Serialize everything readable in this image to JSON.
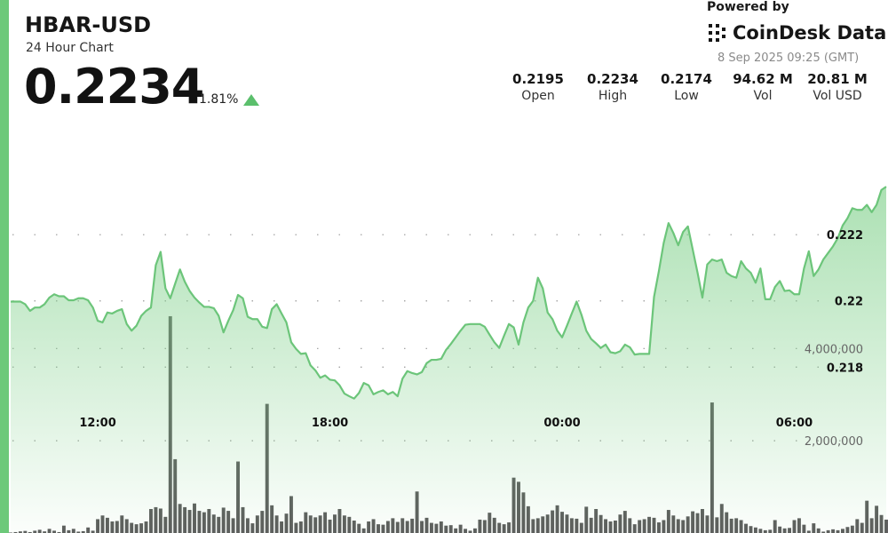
{
  "header": {
    "pair": "HBAR-USD",
    "subtitle": "24 Hour Chart",
    "price": "0.2234",
    "change": "1.81%",
    "direction_icon": "triangle-up-icon"
  },
  "branding": {
    "powered_by": "Powered by",
    "name": "CoinDesk Data",
    "icon": "coindesk-logo-icon",
    "timestamp": "8 Sep 2025 09:25 (GMT)"
  },
  "stats": [
    {
      "value": "0.2195",
      "label": "Open"
    },
    {
      "value": "0.2234",
      "label": "High"
    },
    {
      "value": "0.2174",
      "label": "Low"
    },
    {
      "value": "94.62 M",
      "label": "Vol"
    },
    {
      "value": "20.81 M",
      "label": "Vol USD"
    }
  ],
  "colors": {
    "accent": "#6dc97a",
    "line": "#6cc57a",
    "volume_bar": "#5c5c5c",
    "grid_dots": "#9a9a9a"
  },
  "chart_data": [
    {
      "type": "area",
      "title": "",
      "xlabel": "",
      "ylabel": "",
      "x_ticks": [
        "12:00",
        "18:00",
        "00:00",
        "06:00"
      ],
      "x_tick_index": [
        18,
        66,
        114,
        162
      ],
      "y_ticks": [
        "0.222",
        "0.22",
        "0.218"
      ],
      "y_tick_values": [
        0.222,
        0.22,
        0.218
      ],
      "ylim": [
        0.2168,
        0.2256
      ],
      "grid": "dotted horizontal",
      "series": [
        {
          "values": [
            0.21998,
            0.21998,
            0.21998,
            0.2199,
            0.2197,
            0.2198,
            0.2198,
            0.2199,
            0.2201,
            0.2202,
            0.22014,
            0.22014,
            0.22002,
            0.22002,
            0.22008,
            0.22008,
            0.22002,
            0.2198,
            0.2194,
            0.21935,
            0.21965,
            0.21962,
            0.2197,
            0.21975,
            0.2193,
            0.2191,
            0.21925,
            0.21955,
            0.2197,
            0.2198,
            0.22108,
            0.22148,
            0.22038,
            0.22008,
            0.22052,
            0.22095,
            0.22058,
            0.2203,
            0.2201,
            0.21995,
            0.21982,
            0.21982,
            0.21978,
            0.21955,
            0.21905,
            0.2194,
            0.21972,
            0.22018,
            0.22008,
            0.21952,
            0.21945,
            0.21945,
            0.21922,
            0.21918,
            0.21975,
            0.2199,
            0.21962,
            0.21935,
            0.21875,
            0.21855,
            0.2184,
            0.21842,
            0.21805,
            0.2179,
            0.21768,
            0.21775,
            0.21762,
            0.2176,
            0.21745,
            0.2172,
            0.21712,
            0.21705,
            0.21722,
            0.21752,
            0.21745,
            0.21718,
            0.21725,
            0.2173,
            0.21718,
            0.21725,
            0.21712,
            0.21765,
            0.21788,
            0.21782,
            0.21778,
            0.21785,
            0.21812,
            0.21822,
            0.21822,
            0.21825,
            0.21852,
            0.2187,
            0.2189,
            0.2191,
            0.21928,
            0.2193,
            0.2193,
            0.2193,
            0.21922,
            0.21898,
            0.21875,
            0.21858,
            0.21895,
            0.2193,
            0.2192,
            0.21868,
            0.21935,
            0.2198,
            0.22,
            0.2207,
            0.22038,
            0.21965,
            0.21945,
            0.2191,
            0.2189,
            0.21925,
            0.21962,
            0.21998,
            0.21958,
            0.2191,
            0.21885,
            0.21872,
            0.21858,
            0.21868,
            0.21845,
            0.21842,
            0.21848,
            0.21868,
            0.2186,
            0.21838,
            0.2184,
            0.2184,
            0.2184,
            0.22012,
            0.2209,
            0.22175,
            0.22235,
            0.22205,
            0.22168,
            0.22208,
            0.22225,
            0.22155,
            0.22085,
            0.2201,
            0.2211,
            0.22125,
            0.2212,
            0.22125,
            0.22085,
            0.22075,
            0.2207,
            0.2212,
            0.22098,
            0.22085,
            0.22055,
            0.22098,
            0.22005,
            0.22005,
            0.22042,
            0.2206,
            0.2203,
            0.22032,
            0.2202,
            0.2202,
            0.22098,
            0.2215,
            0.22075,
            0.22095,
            0.22125,
            0.22145,
            0.22165,
            0.2219,
            0.22228,
            0.2225,
            0.2228,
            0.22275,
            0.22275,
            0.2229,
            0.22268,
            0.2229,
            0.22335,
            0.22345
          ]
        }
      ]
    },
    {
      "type": "bar",
      "title": "",
      "xlabel": "",
      "ylabel": "",
      "y_ticks": [
        "4,000,000",
        "2,000,000"
      ],
      "y_tick_values": [
        4000000,
        2000000
      ],
      "ylim": [
        0,
        5200000
      ],
      "grid": "dotted horizontal",
      "values": [
        10000,
        20000,
        35000,
        45000,
        20000,
        50000,
        70000,
        35000,
        90000,
        50000,
        20000,
        160000,
        60000,
        90000,
        30000,
        40000,
        120000,
        50000,
        300000,
        380000,
        330000,
        250000,
        260000,
        380000,
        300000,
        220000,
        190000,
        210000,
        250000,
        520000,
        560000,
        530000,
        350000,
        4700000,
        1600000,
        630000,
        560000,
        500000,
        640000,
        480000,
        450000,
        520000,
        400000,
        350000,
        550000,
        480000,
        320000,
        1550000,
        560000,
        320000,
        210000,
        380000,
        480000,
        2800000,
        600000,
        380000,
        250000,
        420000,
        800000,
        220000,
        250000,
        450000,
        380000,
        340000,
        380000,
        450000,
        290000,
        400000,
        520000,
        380000,
        350000,
        270000,
        200000,
        100000,
        250000,
        300000,
        190000,
        180000,
        260000,
        320000,
        240000,
        320000,
        260000,
        310000,
        900000,
        260000,
        330000,
        220000,
        200000,
        250000,
        160000,
        170000,
        100000,
        180000,
        90000,
        50000,
        100000,
        290000,
        280000,
        440000,
        330000,
        220000,
        190000,
        230000,
        1200000,
        1110000,
        880000,
        580000,
        300000,
        320000,
        360000,
        400000,
        490000,
        600000,
        460000,
        400000,
        320000,
        310000,
        220000,
        570000,
        330000,
        520000,
        390000,
        300000,
        250000,
        270000,
        400000,
        480000,
        320000,
        190000,
        280000,
        300000,
        350000,
        330000,
        230000,
        280000,
        500000,
        380000,
        300000,
        280000,
        360000,
        470000,
        430000,
        520000,
        380000,
        2830000,
        340000,
        630000,
        450000,
        310000,
        320000,
        280000,
        200000,
        150000,
        120000,
        90000,
        60000,
        70000,
        280000,
        140000,
        100000,
        110000,
        280000,
        320000,
        180000,
        50000,
        210000,
        100000,
        30000,
        60000,
        80000,
        60000,
        90000,
        130000,
        160000,
        300000,
        220000,
        700000,
        320000,
        590000,
        390000,
        290000,
        450000,
        580000,
        740000,
        710000,
        920000,
        640000,
        810000
      ]
    }
  ]
}
